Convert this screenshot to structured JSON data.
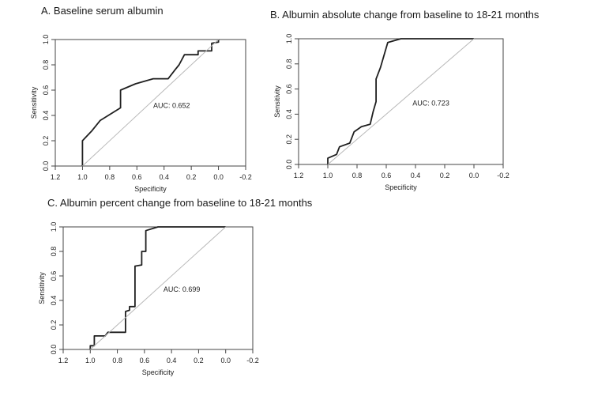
{
  "chart_data": [
    {
      "type": "line",
      "title": "A.   Baseline serum albumin",
      "xlabel": "Specificity",
      "ylabel": "Sensitivity",
      "xlim": [
        1.2,
        -0.2
      ],
      "ylim": [
        0.0,
        1.0
      ],
      "x_ticks": [
        "1.2",
        "1.0",
        "0.8",
        "0.6",
        "0.4",
        "0.2",
        "0.0",
        "-0.2"
      ],
      "x_tick_values": [
        1.2,
        1.0,
        0.8,
        0.6,
        0.4,
        0.2,
        0.0,
        -0.2
      ],
      "y_ticks": [
        "0.0",
        "0.2",
        "0.4",
        "0.6",
        "0.8",
        "1.0"
      ],
      "y_tick_values": [
        0.0,
        0.2,
        0.4,
        0.6,
        0.8,
        1.0
      ],
      "annotation": "AUC: 0.652",
      "annotation_at": [
        0.48,
        0.46
      ],
      "series": [
        {
          "name": "ROC",
          "points": [
            [
              1.0,
              0.0
            ],
            [
              1.0,
              0.2
            ],
            [
              0.93,
              0.28
            ],
            [
              0.87,
              0.36
            ],
            [
              0.81,
              0.4
            ],
            [
              0.72,
              0.46
            ],
            [
              0.72,
              0.6
            ],
            [
              0.61,
              0.65
            ],
            [
              0.48,
              0.69
            ],
            [
              0.37,
              0.69
            ],
            [
              0.32,
              0.76
            ],
            [
              0.29,
              0.8
            ],
            [
              0.25,
              0.88
            ],
            [
              0.15,
              0.88
            ],
            [
              0.15,
              0.91
            ],
            [
              0.05,
              0.91
            ],
            [
              0.05,
              0.97
            ],
            [
              0.0,
              0.98
            ],
            [
              0.0,
              1.0
            ]
          ]
        },
        {
          "name": "chance",
          "points": [
            [
              1.0,
              0.0
            ],
            [
              0.0,
              1.0
            ]
          ]
        }
      ]
    },
    {
      "type": "line",
      "title": "B. Albumin absolute change from baseline to 18-21 months",
      "xlabel": "Specificity",
      "ylabel": "Sensitivity",
      "xlim": [
        1.2,
        -0.2
      ],
      "ylim": [
        0.0,
        1.0
      ],
      "x_ticks": [
        "1.2",
        "1.0",
        "0.8",
        "0.6",
        "0.4",
        "0.2",
        "0.0",
        "-0.2"
      ],
      "x_tick_values": [
        1.2,
        1.0,
        0.8,
        0.6,
        0.4,
        0.2,
        0.0,
        -0.2
      ],
      "y_ticks": [
        "0.0",
        "0.2",
        "0.4",
        "0.6",
        "0.8",
        "1.0"
      ],
      "y_tick_values": [
        0.0,
        0.2,
        0.4,
        0.6,
        0.8,
        1.0
      ],
      "annotation": "AUC: 0.723",
      "annotation_at": [
        0.42,
        0.47
      ],
      "series": [
        {
          "name": "ROC",
          "points": [
            [
              1.0,
              0.0
            ],
            [
              1.0,
              0.05
            ],
            [
              0.94,
              0.08
            ],
            [
              0.92,
              0.14
            ],
            [
              0.85,
              0.17
            ],
            [
              0.82,
              0.26
            ],
            [
              0.77,
              0.3
            ],
            [
              0.71,
              0.32
            ],
            [
              0.69,
              0.42
            ],
            [
              0.67,
              0.5
            ],
            [
              0.67,
              0.68
            ],
            [
              0.64,
              0.77
            ],
            [
              0.59,
              0.97
            ],
            [
              0.5,
              1.0
            ],
            [
              0.0,
              1.0
            ]
          ]
        },
        {
          "name": "chance",
          "points": [
            [
              1.0,
              0.0
            ],
            [
              0.0,
              1.0
            ]
          ]
        }
      ]
    },
    {
      "type": "line",
      "title": "C. Albumin percent change from baseline to 18-21 months",
      "xlabel": "Specificity",
      "ylabel": "Sensitivity",
      "xlim": [
        1.2,
        -0.2
      ],
      "ylim": [
        0.0,
        1.0
      ],
      "x_ticks": [
        "1.2",
        "1.0",
        "0.8",
        "0.6",
        "0.4",
        "0.2",
        "0.0",
        "-0.2"
      ],
      "x_tick_values": [
        1.2,
        1.0,
        0.8,
        0.6,
        0.4,
        0.2,
        0.0,
        -0.2
      ],
      "y_ticks": [
        "0.0",
        "0.2",
        "0.4",
        "0.6",
        "0.8",
        "1.0"
      ],
      "y_tick_values": [
        0.0,
        0.2,
        0.4,
        0.6,
        0.8,
        1.0
      ],
      "annotation": "AUC: 0.699",
      "annotation_at": [
        0.46,
        0.47
      ],
      "series": [
        {
          "name": "ROC",
          "points": [
            [
              1.0,
              0.0
            ],
            [
              1.0,
              0.03
            ],
            [
              0.97,
              0.03
            ],
            [
              0.97,
              0.11
            ],
            [
              0.89,
              0.11
            ],
            [
              0.87,
              0.14
            ],
            [
              0.74,
              0.14
            ],
            [
              0.74,
              0.31
            ],
            [
              0.71,
              0.32
            ],
            [
              0.71,
              0.35
            ],
            [
              0.67,
              0.35
            ],
            [
              0.67,
              0.68
            ],
            [
              0.62,
              0.69
            ],
            [
              0.62,
              0.8
            ],
            [
              0.59,
              0.8
            ],
            [
              0.59,
              0.97
            ],
            [
              0.5,
              1.0
            ],
            [
              0.0,
              1.0
            ]
          ]
        },
        {
          "name": "chance",
          "points": [
            [
              1.0,
              0.0
            ],
            [
              0.0,
              1.0
            ]
          ]
        }
      ]
    }
  ]
}
